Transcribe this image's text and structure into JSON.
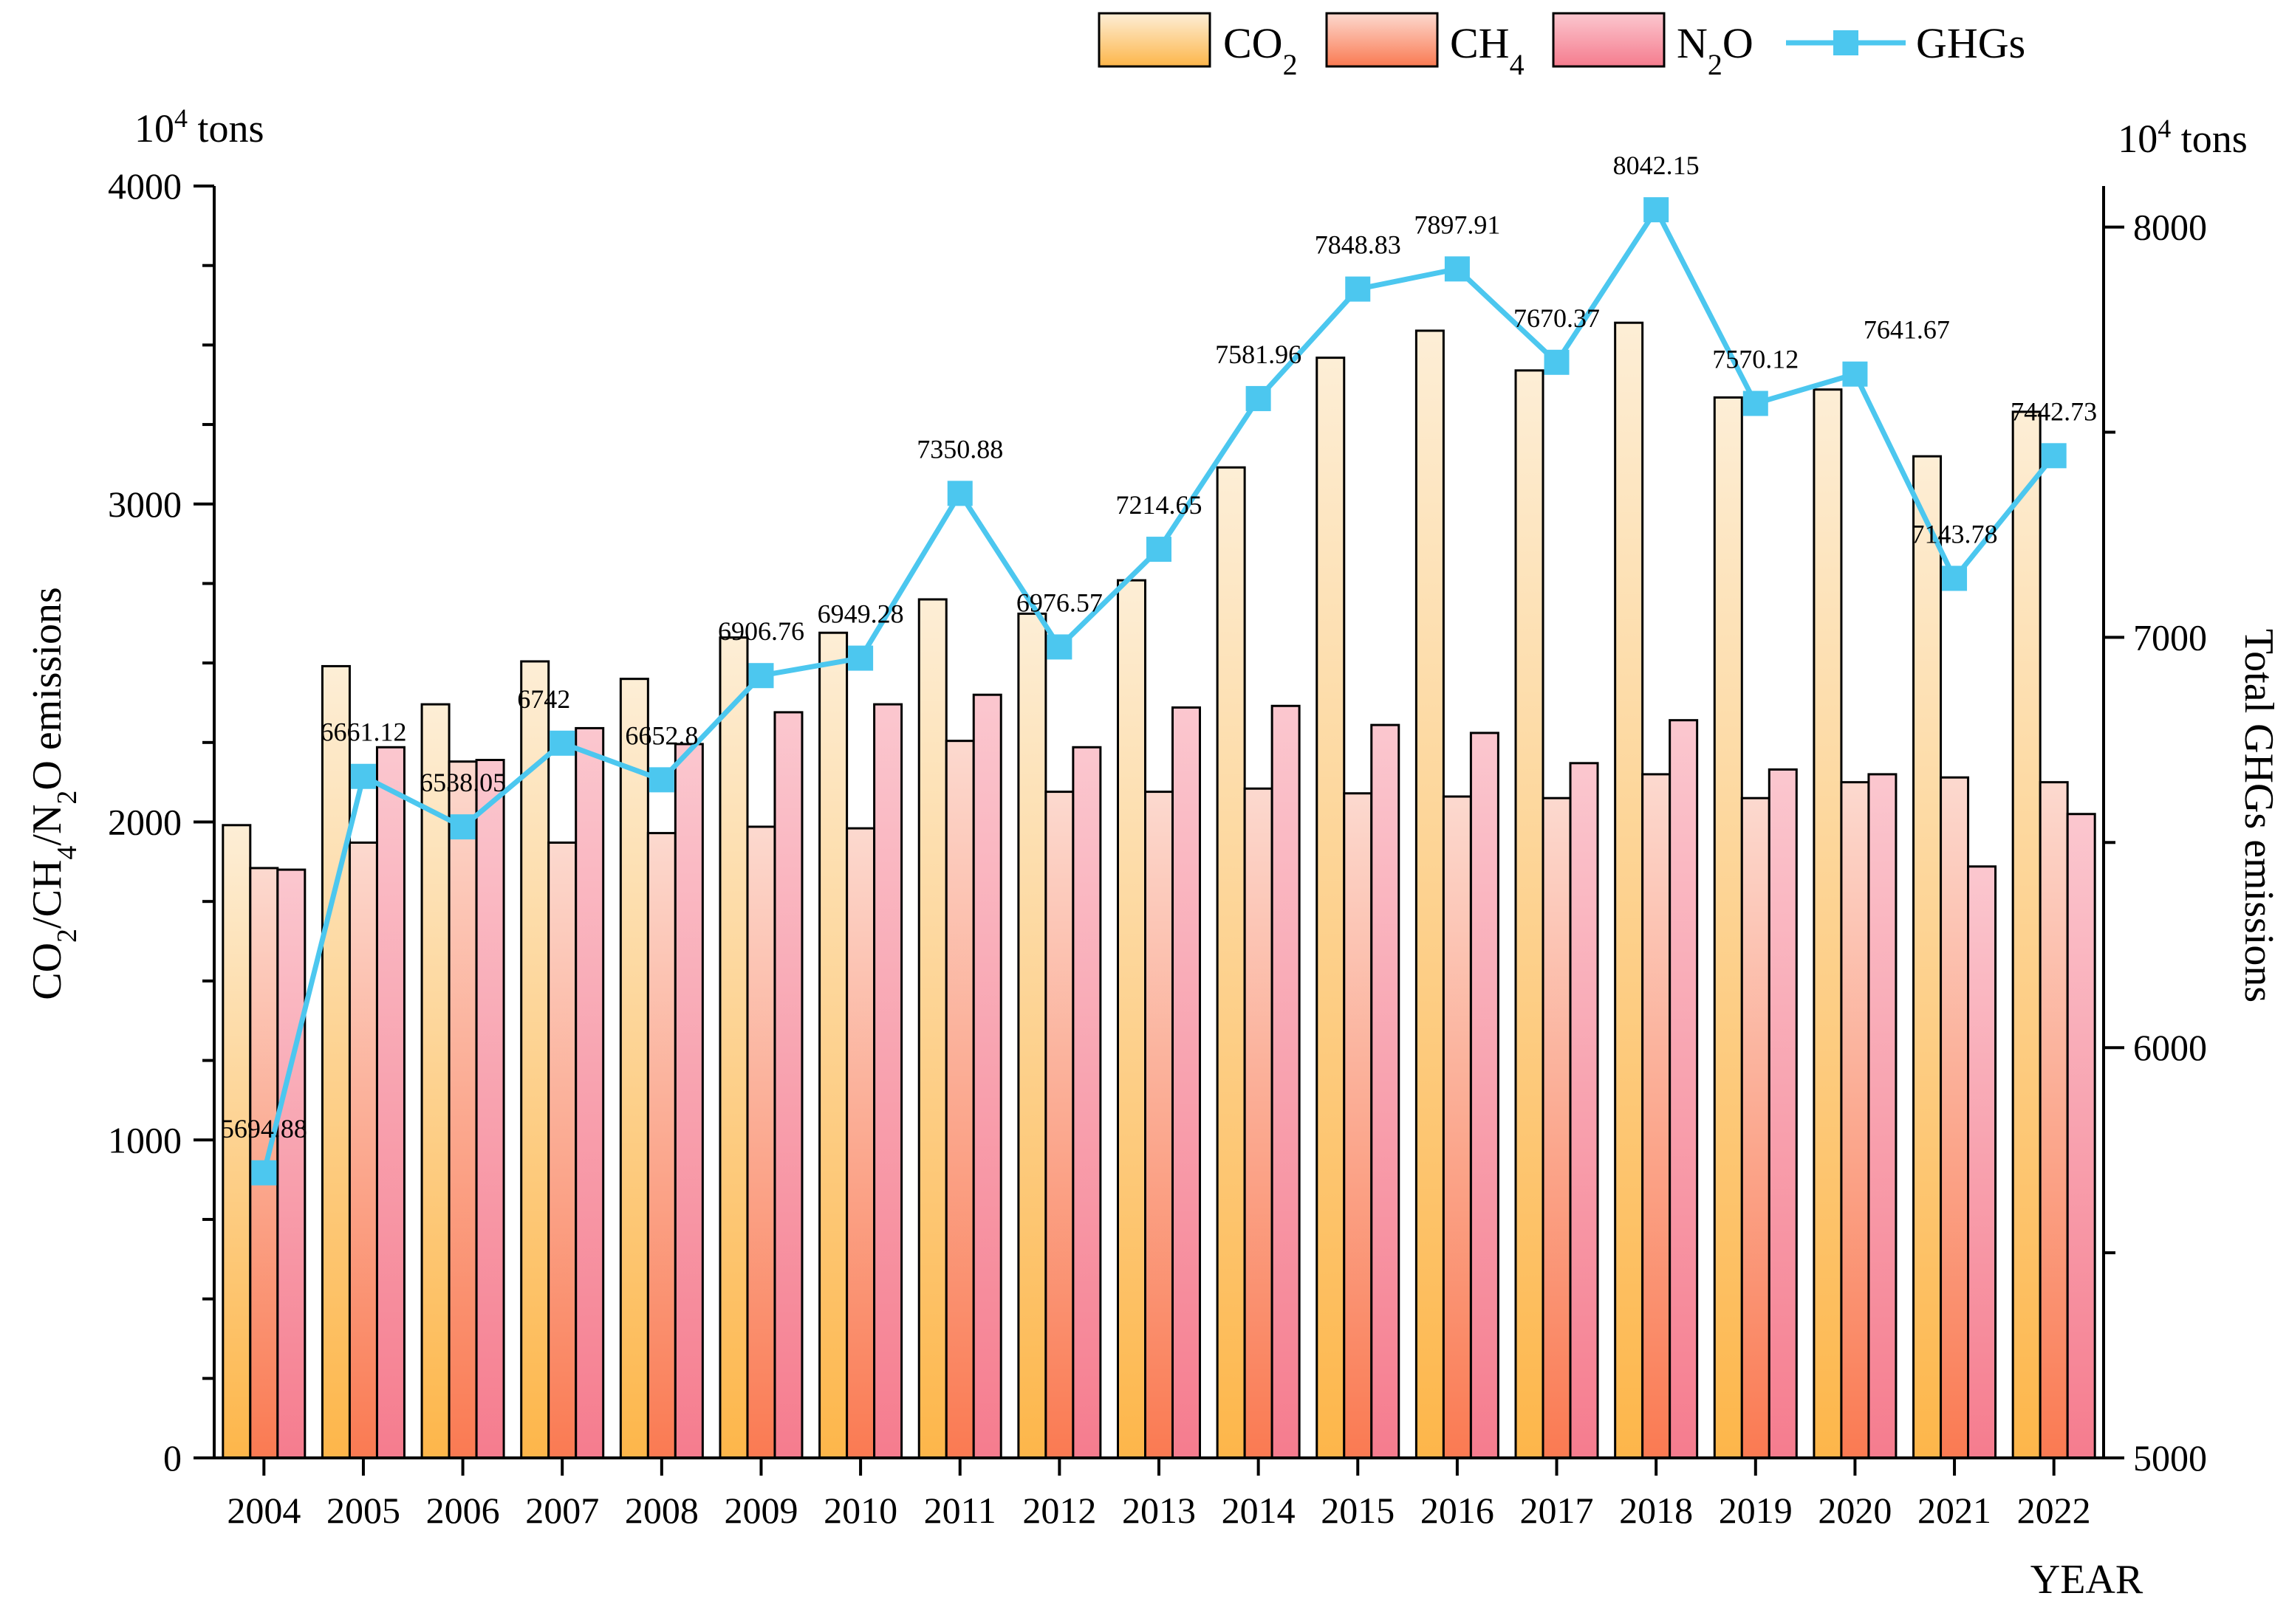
{
  "chart_data": {
    "type": "bar",
    "categories": [
      "2004",
      "2005",
      "2006",
      "2007",
      "2008",
      "2009",
      "2010",
      "2011",
      "2012",
      "2013",
      "2014",
      "2015",
      "2016",
      "2017",
      "2018",
      "2019",
      "2020",
      "2021",
      "2022"
    ],
    "series": [
      {
        "name": "CO2",
        "label_main": "CO",
        "label_sub": "2",
        "label_tail": "",
        "axis": "left",
        "kind": "bar",
        "values": [
          1990,
          2490,
          2370,
          2505,
          2450,
          2580,
          2595,
          2700,
          2655,
          2760,
          3115,
          3460,
          3545,
          3420,
          3570,
          3335,
          3360,
          3150,
          3290
        ]
      },
      {
        "name": "CH4",
        "label_main": "CH",
        "label_sub": "4",
        "label_tail": "",
        "axis": "left",
        "kind": "bar",
        "values": [
          1855,
          1935,
          2190,
          1935,
          1965,
          1985,
          1980,
          2255,
          2095,
          2095,
          2105,
          2090,
          2080,
          2075,
          2150,
          2075,
          2125,
          2140,
          2125
        ]
      },
      {
        "name": "N2O",
        "label_main": "N",
        "label_sub": "2",
        "label_tail": "O",
        "axis": "left",
        "kind": "bar",
        "values": [
          1850,
          2235,
          2195,
          2295,
          2245,
          2345,
          2370,
          2400,
          2235,
          2360,
          2365,
          2305,
          2280,
          2185,
          2320,
          2165,
          2150,
          1860,
          2025
        ]
      },
      {
        "name": "GHGs",
        "label_main": "GHGs",
        "label_sub": "",
        "label_tail": "",
        "axis": "right",
        "kind": "line",
        "values": [
          5694.88,
          6661.12,
          6538.05,
          6742,
          6652.8,
          6906.76,
          6949.28,
          7350.88,
          6976.57,
          7214.65,
          7581.96,
          7848.83,
          7897.91,
          7670.37,
          8042.15,
          7570.12,
          7641.67,
          7143.78,
          7442.73
        ],
        "labels": [
          "5694.88",
          "6661.12",
          "6538.05",
          "6742",
          "6652.8",
          "6906.76",
          "6949.28",
          "7350.88",
          "6976.57",
          "7214.65",
          "7581.96",
          "7848.83",
          "7897.91",
          "7670.37",
          "8042.15",
          "7570.12",
          "7641.67",
          "7143.78",
          "7442.73"
        ]
      }
    ],
    "y_left": {
      "ylim": [
        0,
        4000
      ],
      "ticks": [
        "0",
        "1000",
        "2000",
        "3000",
        "4000"
      ],
      "tick_values": [
        0,
        1000,
        2000,
        3000,
        4000
      ],
      "title_parts": [
        "CO",
        "2",
        "/CH",
        "4",
        "/N",
        "2",
        "O emissions"
      ],
      "unit_main": "10",
      "unit_sup": "4",
      "unit_tail": " tons"
    },
    "y_right": {
      "ylim": [
        5000,
        8100
      ],
      "ticks": [
        "5000",
        "6000",
        "7000",
        "8000"
      ],
      "tick_values": [
        5000,
        6000,
        7000,
        8000
      ],
      "title": "Total GHGs emissions",
      "unit_main": "10",
      "unit_sup": "4",
      "unit_tail": " tons"
    },
    "xlabel": "YEAR",
    "legend_position": "top-right",
    "grid": false,
    "colors": {
      "co2_top": "#fdeed6",
      "co2_bottom": "#fdb64a",
      "ch4_top": "#fcd9cf",
      "ch4_bottom": "#fa7a52",
      "n2o_top": "#fbc7cf",
      "n2o_bottom": "#f57c8e",
      "ghgs": "#4cc7ef"
    }
  }
}
